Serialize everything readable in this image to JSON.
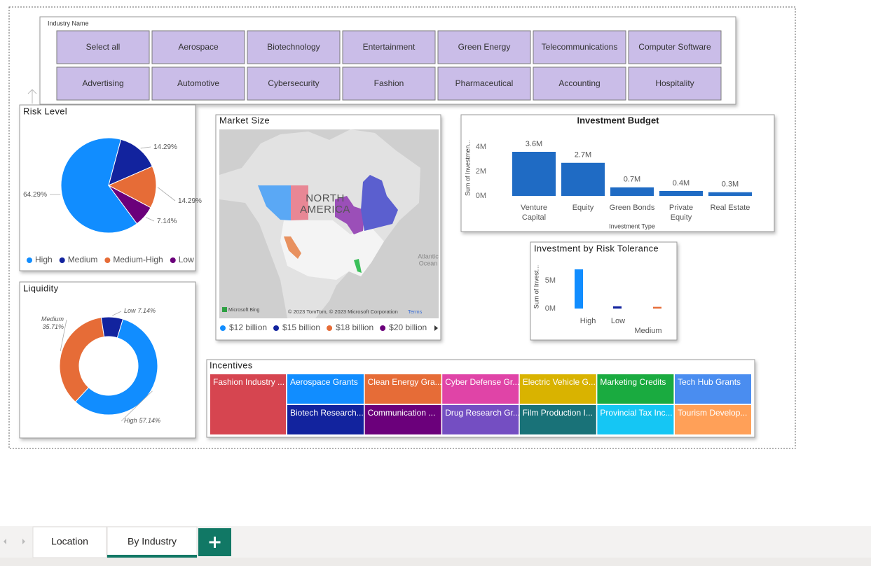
{
  "slicer": {
    "title": "Industry Name",
    "items": [
      "Select all",
      "Aerospace",
      "Biotechnology",
      "Entertainment",
      "Green Energy",
      "Telecommunications",
      "Computer Software",
      "Advertising",
      "Automotive",
      "Cybersecurity",
      "Fashion",
      "Pharmaceutical",
      "Accounting",
      "Hospitality"
    ]
  },
  "risk_level": {
    "type": "pie",
    "title": "Risk Level",
    "categories": [
      "High",
      "Medium",
      "Medium-High",
      "Low"
    ],
    "values": [
      64.29,
      14.29,
      14.29,
      7.14
    ],
    "value_labels": [
      "64.29%",
      "14.29%",
      "14.29%",
      "7.14%"
    ],
    "colors": [
      "#118DFF",
      "#12239E",
      "#E66C37",
      "#6B007B"
    ]
  },
  "liquidity": {
    "type": "donut",
    "title": "Liquidity",
    "categories": [
      "High",
      "Medium",
      "Low"
    ],
    "values": [
      57.14,
      35.71,
      7.14
    ],
    "value_labels": [
      "57.14%",
      "35.71%",
      "7.14%"
    ],
    "colors": [
      "#118DFF",
      "#E66C37",
      "#12239E"
    ]
  },
  "market_size": {
    "title": "Market Size",
    "continent": [
      "NORTH",
      "AMERICA"
    ],
    "ocean": [
      "Atlantic",
      "Ocean"
    ],
    "brand": "Microsoft Bing",
    "attribution": "© 2023 TomTom, © 2023 Microsoft Corporation",
    "terms": "Terms",
    "legend": [
      {
        "name": "$12 billion",
        "color": "#118DFF"
      },
      {
        "name": "$15 billion",
        "color": "#12239E"
      },
      {
        "name": "$18 billion",
        "color": "#E66C37"
      },
      {
        "name": "$20 billion",
        "color": "#6B007B"
      }
    ]
  },
  "investment_budget": {
    "type": "bar",
    "title": "Investment Budget",
    "x_label": "Investment Type",
    "y_label": "Sum of Investmen...",
    "categories": [
      [
        "Venture",
        "Capital"
      ],
      [
        "Equity"
      ],
      [
        "Green Bonds"
      ],
      [
        "Private",
        "Equity"
      ],
      [
        "Real Estate"
      ]
    ],
    "values": [
      3600000,
      2700000,
      700000,
      400000,
      300000
    ],
    "value_labels": [
      "3.6M",
      "2.7M",
      "0.7M",
      "0.4M",
      "0.3M"
    ],
    "color": "#1F6BC4",
    "ylim": [
      0,
      4500000
    ],
    "yticks": [
      {
        "value": 0,
        "label": "0M"
      },
      {
        "value": 2000000,
        "label": "2M"
      },
      {
        "value": 4000000,
        "label": "4M"
      }
    ]
  },
  "risk_tolerance": {
    "type": "bar",
    "title": "Investment by Risk Tolerance",
    "y_label": "Sum of Invest...",
    "categories": [
      [
        "High"
      ],
      [
        "Low"
      ],
      [
        "Medium"
      ]
    ],
    "values": [
      7000000,
      400000,
      300000
    ],
    "colors": [
      "#118DFF",
      "#12239E",
      "#E66C37"
    ],
    "ylim": [
      0,
      7500000
    ],
    "yticks": [
      {
        "value": 0,
        "label": "0M"
      },
      {
        "value": 5000000,
        "label": "5M"
      }
    ]
  },
  "incentives": {
    "title": "Incentives",
    "items": [
      {
        "name": "Fashion Industry ...",
        "color": "#D64550"
      },
      {
        "name": "Aerospace Grants",
        "color": "#118DFF"
      },
      {
        "name": "Biotech Research...",
        "color": "#12239E"
      },
      {
        "name": "Clean Energy Gra...",
        "color": "#E66C37"
      },
      {
        "name": "Communication ...",
        "color": "#6B007B"
      },
      {
        "name": "Cyber Defense Gr...",
        "color": "#E044A7"
      },
      {
        "name": "Drug Research Gr...",
        "color": "#744EC2"
      },
      {
        "name": "Electric Vehicle G...",
        "color": "#D9B300"
      },
      {
        "name": "Film Production I...",
        "color": "#197278"
      },
      {
        "name": "Marketing Credits",
        "color": "#1AAB40"
      },
      {
        "name": "Provincial Tax Inc...",
        "color": "#15C6F4"
      },
      {
        "name": "Tech Hub Grants",
        "color": "#4A8DF0"
      },
      {
        "name": "Tourism Develop...",
        "color": "#FFA058"
      }
    ]
  },
  "tabs": {
    "items": [
      "Location",
      "By Industry"
    ],
    "active": 1
  }
}
